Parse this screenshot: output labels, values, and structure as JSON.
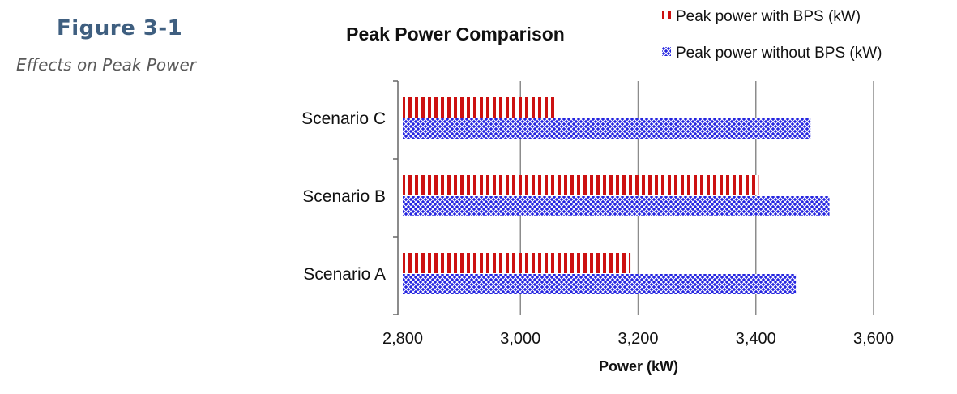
{
  "figure": {
    "label": "Figure 3-1",
    "caption": "Effects on Peak Power"
  },
  "colors": {
    "with_bps": "#cc1111",
    "without_bps": "#2222dd",
    "figure_label": "#3f5f80",
    "grid": "#8c8c8c"
  },
  "chart_data": {
    "type": "bar",
    "orientation": "horizontal",
    "title": "Peak Power Comparison",
    "xlabel": "Power (kW)",
    "ylabel": "",
    "categories": [
      "Scenario C",
      "Scenario B",
      "Scenario A"
    ],
    "series": [
      {
        "name": "Peak power with BPS (kW)",
        "values": [
          3060,
          3405,
          3187
        ],
        "pattern": "vertical-stripes"
      },
      {
        "name": "Peak power without BPS (kW)",
        "values": [
          3493,
          3525,
          3468
        ],
        "pattern": "crosshatch"
      }
    ],
    "xlim": [
      2800,
      3600
    ],
    "xticks": [
      "2,800",
      "3,000",
      "3,200",
      "3,400",
      "3,600"
    ],
    "xtick_values": [
      2800,
      3000,
      3200,
      3400,
      3600
    ],
    "grid": true,
    "legend": "top-right"
  }
}
